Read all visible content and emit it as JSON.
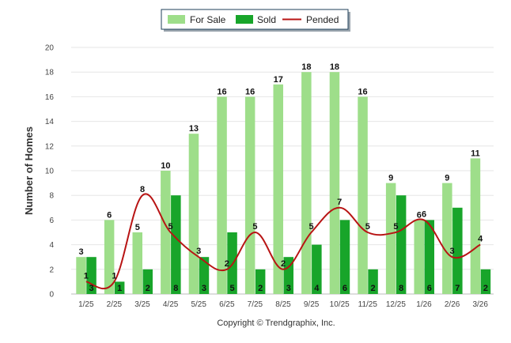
{
  "chart_data": {
    "type": "bar",
    "ylabel": "Number of Homes",
    "xlabel": "",
    "ylim": [
      0,
      20
    ],
    "yticks": [
      0,
      2,
      4,
      6,
      8,
      10,
      12,
      14,
      16,
      18,
      20
    ],
    "categories": [
      "1/25",
      "2/25",
      "3/25",
      "4/25",
      "5/25",
      "6/25",
      "7/25",
      "8/25",
      "9/25",
      "10/25",
      "11/25",
      "12/25",
      "1/26",
      "2/26",
      "3/26"
    ],
    "series": [
      {
        "name": "For Sale",
        "type": "bar",
        "color": "#9ede8a",
        "values": [
          3,
          6,
          5,
          10,
          13,
          16,
          16,
          17,
          18,
          18,
          16,
          9,
          6,
          9,
          11
        ]
      },
      {
        "name": "Sold",
        "type": "bar",
        "color": "#18a52a",
        "values": [
          3,
          1,
          2,
          8,
          3,
          5,
          2,
          3,
          4,
          6,
          2,
          8,
          6,
          7,
          2
        ]
      },
      {
        "name": "Pended",
        "type": "line",
        "color": "#b81414",
        "values": [
          1,
          1,
          8,
          5,
          3,
          2,
          5,
          2,
          5,
          7,
          5,
          5,
          6,
          3,
          4
        ]
      }
    ],
    "legend_position": "top-center",
    "grid": true
  },
  "footer": {
    "copyright": "Copyright © Trendgraphix, Inc."
  }
}
